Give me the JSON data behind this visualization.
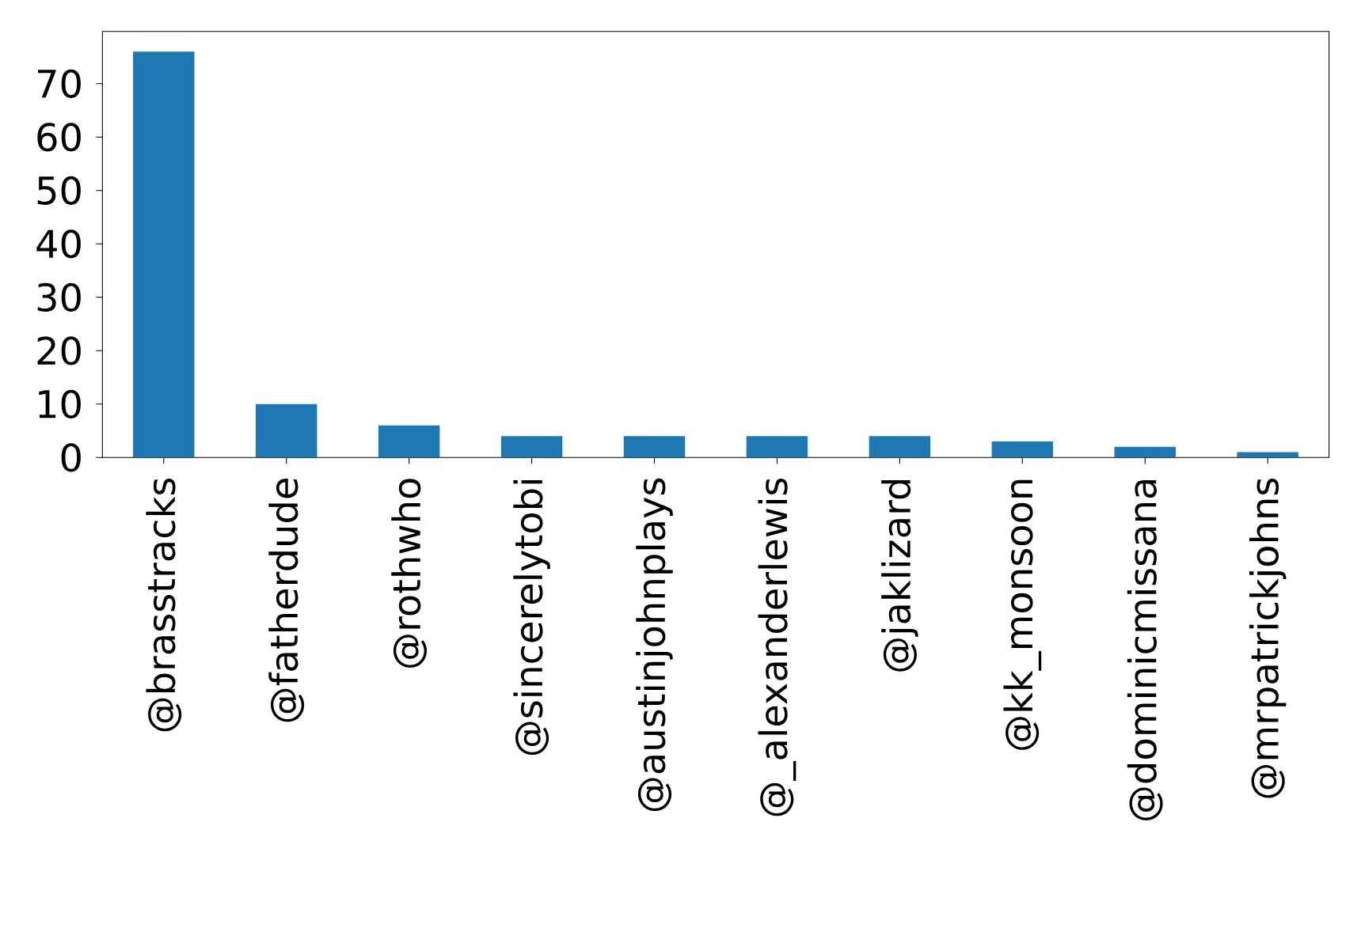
{
  "chart_data": {
    "type": "bar",
    "categories": [
      "@brasstracks",
      "@fatherdude",
      "@rothwho",
      "@sincerelytobi",
      "@austinjohnplays",
      "@_alexanderlewis",
      "@jaklizard",
      "@kk_monsoon",
      "@dominicmissana",
      "@mrpatrickjohns"
    ],
    "values": [
      76,
      10,
      6,
      4,
      4,
      4,
      4,
      3,
      2,
      1
    ],
    "color": "#1f77b4",
    "ylim": [
      0,
      79.8
    ],
    "yticks": [
      0,
      10,
      20,
      30,
      40,
      50,
      60,
      70
    ]
  }
}
